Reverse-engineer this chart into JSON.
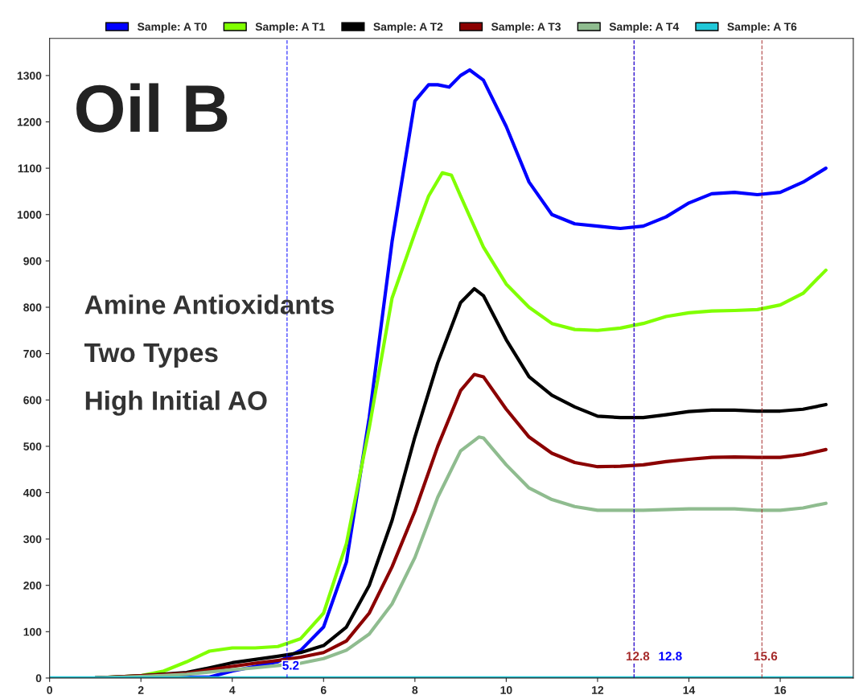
{
  "chart_data": {
    "type": "line",
    "title": "Oil B",
    "annotations": [
      "Amine Antioxidants",
      "Two Types",
      "High Initial AO"
    ],
    "xlim": [
      0,
      17.6
    ],
    "xticks": [
      0,
      2,
      4,
      6,
      8,
      10,
      12,
      14,
      16
    ],
    "ylim": [
      0,
      1380
    ],
    "yticks": [
      0,
      100,
      200,
      300,
      400,
      500,
      600,
      700,
      800,
      900,
      1000,
      1100,
      1200,
      1300
    ],
    "grid": false,
    "legend": "top",
    "marker": "none",
    "line_style": "solid",
    "series": [
      {
        "name": "Sample: A T0",
        "color": "#0000ff",
        "x": [
          1,
          3.5,
          4,
          4.5,
          5,
          5.2,
          5.5,
          6,
          6.5,
          7,
          7.5,
          8,
          8.3,
          8.5,
          8.75,
          9,
          9.2,
          9.5,
          10,
          10.5,
          11,
          11.5,
          12,
          12.5,
          13,
          13.5,
          14,
          14.5,
          15,
          15.5,
          16,
          16.5,
          17
        ],
        "values": [
          0,
          2,
          15,
          25,
          35,
          45,
          60,
          110,
          250,
          562,
          942,
          1245,
          1280,
          1280,
          1275,
          1300,
          1312,
          1290,
          1190,
          1070,
          1000,
          980,
          975,
          970,
          975,
          995,
          1025,
          1045,
          1048,
          1043,
          1048,
          1070,
          1100
        ]
      },
      {
        "name": "Sample: A T1",
        "color": "#80ff00",
        "x": [
          1,
          2,
          2.5,
          3,
          3.5,
          4,
          4.5,
          5,
          5.5,
          6,
          6.5,
          7,
          7.5,
          8,
          8.3,
          8.6,
          8.8,
          9,
          9.5,
          10,
          10.5,
          11,
          11.5,
          12,
          12.5,
          13,
          13.5,
          14,
          14.5,
          15,
          15.5,
          16,
          16.5,
          17
        ],
        "values": [
          0,
          5,
          15,
          35,
          58,
          65,
          65,
          68,
          85,
          140,
          290,
          540,
          820,
          960,
          1040,
          1090,
          1085,
          1040,
          930,
          850,
          800,
          765,
          752,
          750,
          755,
          765,
          780,
          788,
          792,
          793,
          795,
          805,
          830,
          880
        ]
      },
      {
        "name": "Sample: A T2",
        "color": "#000000",
        "x": [
          1,
          2,
          3,
          3.5,
          4,
          4.5,
          5,
          5.5,
          6,
          6.5,
          7,
          7.5,
          8,
          8.5,
          9,
          9.3,
          9.5,
          10,
          10.5,
          11,
          11.5,
          12,
          12.5,
          13,
          13.5,
          14,
          14.5,
          15,
          15.5,
          16,
          16.5,
          17
        ],
        "values": [
          0,
          5,
          12,
          22,
          33,
          40,
          47,
          55,
          70,
          110,
          200,
          340,
          520,
          680,
          810,
          840,
          825,
          730,
          650,
          610,
          585,
          565,
          562,
          562,
          568,
          575,
          578,
          578,
          576,
          576,
          580,
          590
        ]
      },
      {
        "name": "Sample: A T3",
        "color": "#8b0000",
        "x": [
          1,
          2,
          3,
          3.5,
          4,
          4.5,
          5,
          5.5,
          6,
          6.5,
          7,
          7.5,
          8,
          8.5,
          9,
          9.3,
          9.5,
          10,
          10.5,
          11,
          11.5,
          12,
          12.5,
          13,
          13.5,
          14,
          14.5,
          15,
          15.5,
          16,
          16.5,
          17
        ],
        "values": [
          0,
          5,
          10,
          18,
          25,
          32,
          38,
          45,
          55,
          80,
          140,
          240,
          360,
          500,
          620,
          655,
          650,
          580,
          520,
          485,
          465,
          456,
          457,
          460,
          467,
          472,
          476,
          477,
          476,
          476,
          482,
          493
        ]
      },
      {
        "name": "Sample: A T4",
        "color": "#8fbc8f",
        "x": [
          1,
          2,
          3,
          4,
          4.5,
          5,
          5.5,
          6,
          6.5,
          7,
          7.5,
          8,
          8.5,
          9,
          9.4,
          9.5,
          10,
          10.5,
          11,
          11.5,
          12,
          13,
          14,
          15,
          15.5,
          16,
          16.5,
          17
        ],
        "values": [
          0,
          3,
          8,
          18,
          22,
          27,
          32,
          42,
          60,
          95,
          160,
          260,
          390,
          490,
          520,
          518,
          460,
          410,
          385,
          370,
          362,
          362,
          365,
          365,
          362,
          362,
          367,
          377
        ]
      },
      {
        "name": "Sample: A T6",
        "color": "#20c8d8",
        "x": [
          0,
          17.6
        ],
        "values": [
          0,
          0
        ]
      }
    ],
    "ref_lines": [
      {
        "axis": "x",
        "value": 5.2,
        "label": "5.2",
        "color": "#0000ff",
        "line_style": "dashed"
      },
      {
        "axis": "x",
        "value": 12.8,
        "label": "12.8",
        "color": "#a52a2a",
        "line_style": "dashed"
      },
      {
        "axis": "x",
        "value": 12.8,
        "label": "12.8",
        "color": "#0000ff",
        "line_style": "dashed"
      },
      {
        "axis": "x",
        "value": 15.6,
        "label": "15.6",
        "color": "#a52a2a",
        "line_style": "dashed"
      }
    ]
  }
}
